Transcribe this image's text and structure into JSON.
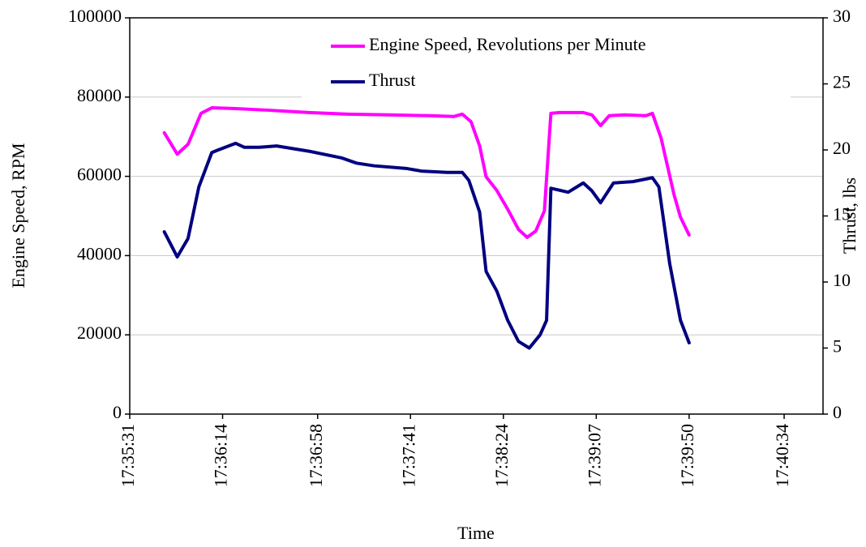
{
  "chart_data": {
    "type": "line",
    "xlabel": "Time",
    "ylabel": "Engine Speed, RPM",
    "y2label": "Thrust, lbs",
    "xlim": [
      63331,
      63652
    ],
    "xticks": [
      {
        "value": 63331,
        "label": "17:35:31"
      },
      {
        "value": 63374,
        "label": "17:36:14"
      },
      {
        "value": 63418,
        "label": "17:36:58"
      },
      {
        "value": 63461,
        "label": "17:37:41"
      },
      {
        "value": 63504,
        "label": "17:38:24"
      },
      {
        "value": 63547,
        "label": "17:39:07"
      },
      {
        "value": 63590,
        "label": "17:39:50"
      },
      {
        "value": 63634,
        "label": "17:40:34"
      }
    ],
    "ylim": [
      0,
      100000
    ],
    "yticks": [
      0,
      20000,
      40000,
      60000,
      80000,
      100000
    ],
    "y2lim": [
      0,
      30
    ],
    "y2ticks": [
      0,
      5,
      10,
      15,
      20,
      25,
      30
    ],
    "grid": true,
    "legend": "top-right",
    "series": [
      {
        "name": "Engine Speed, Revolutions per Minute",
        "color": "#ff00ff",
        "x": [
          63347,
          63353,
          63358,
          63364,
          63369,
          63380,
          63395,
          63414,
          63432,
          63451,
          63470,
          63481,
          63485,
          63489,
          63493,
          63496,
          63501,
          63506,
          63511,
          63515,
          63519,
          63523,
          63526,
          63530,
          63541,
          63545,
          63549,
          63553,
          63560,
          63570,
          63573,
          63577,
          63583,
          63586,
          63590
        ],
        "values": [
          71000,
          65600,
          68100,
          75900,
          77300,
          77100,
          76700,
          76100,
          75700,
          75500,
          75300,
          75100,
          75700,
          73800,
          67700,
          59900,
          56400,
          51700,
          46600,
          44600,
          46200,
          51300,
          75900,
          76100,
          76100,
          75500,
          72800,
          75300,
          75500,
          75300,
          75900,
          69700,
          55400,
          49700,
          45200
        ]
      },
      {
        "name": "Thrust",
        "color": "#000080",
        "axis": "y2",
        "x": [
          63347,
          63353,
          63358,
          63363,
          63369,
          63372,
          63380,
          63384,
          63391,
          63399,
          63414,
          63429,
          63436,
          63444,
          63459,
          63466,
          63478,
          63485,
          63488,
          63493,
          63496,
          63501,
          63506,
          63511,
          63516,
          63521,
          63524,
          63526,
          63534,
          63541,
          63545,
          63549,
          63555,
          63564,
          63573,
          63576,
          63581,
          63586,
          63590
        ],
        "values": [
          13.8,
          11.9,
          13.3,
          17.2,
          19.8,
          20.0,
          20.5,
          20.2,
          20.2,
          20.3,
          19.9,
          19.4,
          19.0,
          18.8,
          18.6,
          18.4,
          18.3,
          18.3,
          17.7,
          15.3,
          10.8,
          9.3,
          7.1,
          5.5,
          5.0,
          6.0,
          7.1,
          17.1,
          16.8,
          17.5,
          16.9,
          16.0,
          17.5,
          17.6,
          17.9,
          17.2,
          11.4,
          7.1,
          5.4
        ]
      }
    ]
  }
}
